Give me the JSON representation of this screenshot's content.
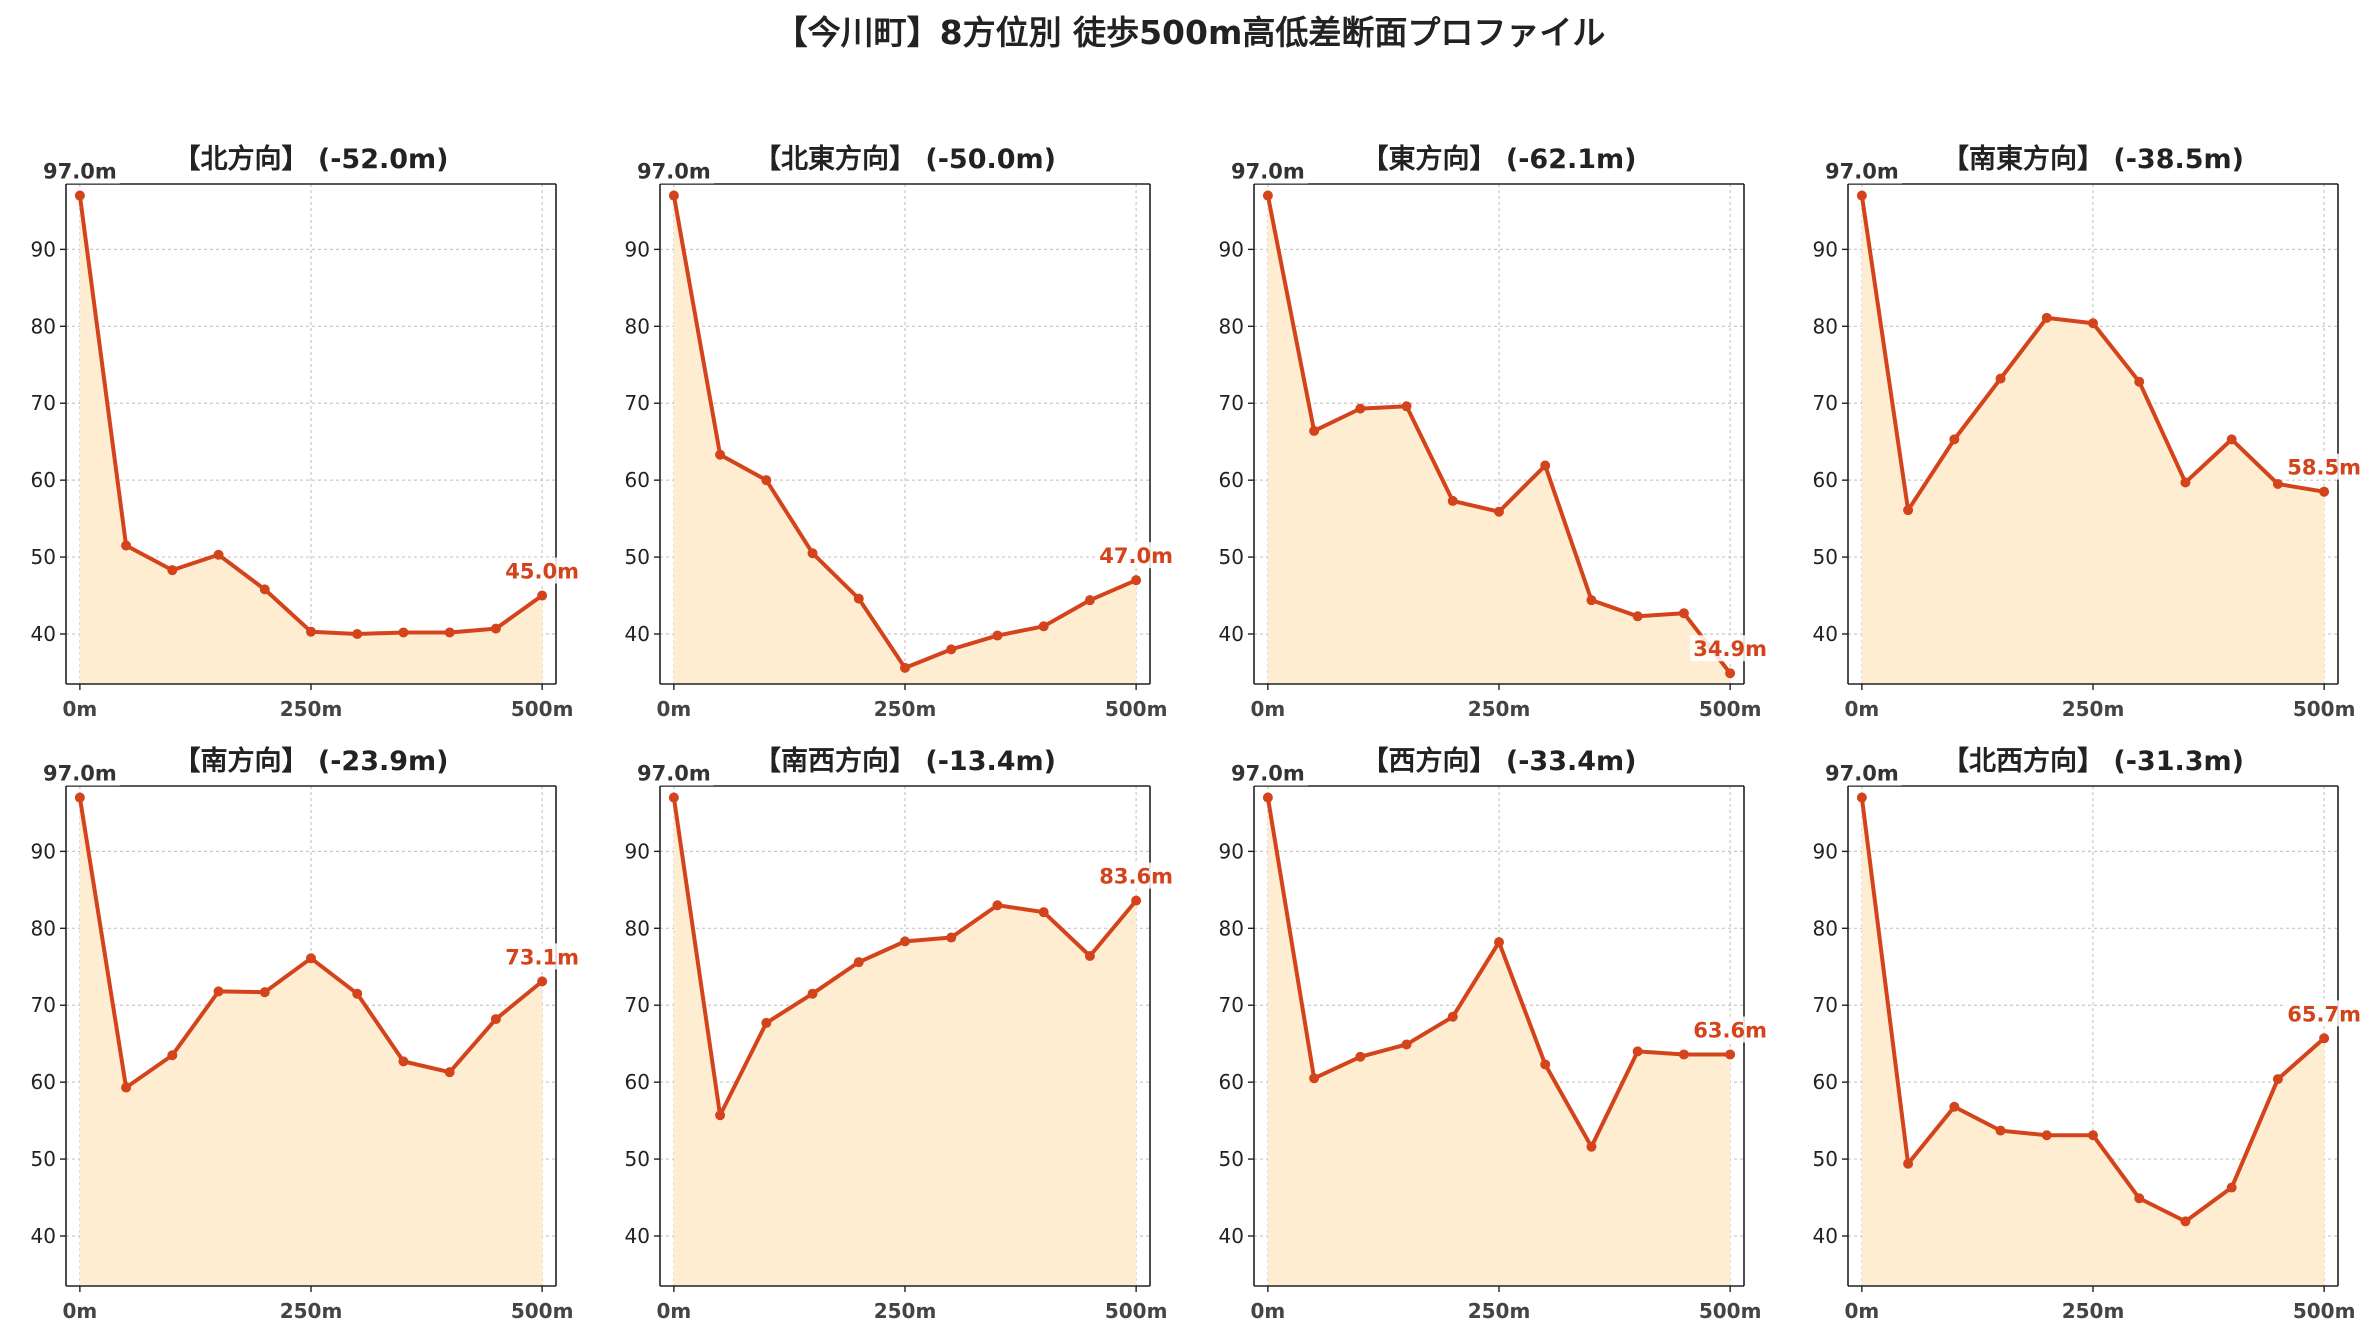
{
  "title": "【今川町】8方位別 徒歩500m高低差断面プロファイル",
  "colors": {
    "line": "#d4441c",
    "fill": "#ffedd1",
    "grid": "#c8c8c8",
    "axis": "#222222"
  },
  "chart_data": [
    {
      "type": "area",
      "title": "【北方向】 (-52.0m)",
      "x": [
        0,
        50,
        100,
        150,
        200,
        250,
        300,
        350,
        400,
        450,
        500
      ],
      "y": [
        97.0,
        51.5,
        48.3,
        50.3,
        45.8,
        40.3,
        40.0,
        40.2,
        40.2,
        40.7,
        45.0
      ],
      "start_label": "97.0m",
      "end_label": "45.0m"
    },
    {
      "type": "area",
      "title": "【北東方向】 (-50.0m)",
      "x": [
        0,
        50,
        100,
        150,
        200,
        250,
        300,
        350,
        400,
        450,
        500
      ],
      "y": [
        97.0,
        63.3,
        60.0,
        50.5,
        44.6,
        35.6,
        38.0,
        39.8,
        41.0,
        44.4,
        47.0
      ],
      "start_label": "97.0m",
      "end_label": "47.0m"
    },
    {
      "type": "area",
      "title": "【東方向】 (-62.1m)",
      "x": [
        0,
        50,
        100,
        150,
        200,
        250,
        300,
        350,
        400,
        450,
        500
      ],
      "y": [
        97.0,
        66.4,
        69.3,
        69.6,
        57.3,
        55.9,
        61.9,
        44.4,
        42.3,
        42.7,
        34.9
      ],
      "start_label": "97.0m",
      "end_label": "34.9m"
    },
    {
      "type": "area",
      "title": "【南東方向】 (-38.5m)",
      "x": [
        0,
        50,
        100,
        150,
        200,
        250,
        300,
        350,
        400,
        450,
        500
      ],
      "y": [
        97.0,
        56.1,
        65.3,
        73.2,
        81.1,
        80.4,
        72.8,
        59.7,
        65.3,
        59.5,
        58.5
      ],
      "start_label": "97.0m",
      "end_label": "58.5m"
    },
    {
      "type": "area",
      "title": "【南方向】 (-23.9m)",
      "x": [
        0,
        50,
        100,
        150,
        200,
        250,
        300,
        350,
        400,
        450,
        500
      ],
      "y": [
        97.0,
        59.3,
        63.5,
        71.8,
        71.7,
        76.1,
        71.5,
        62.7,
        61.3,
        68.2,
        73.1
      ],
      "start_label": "97.0m",
      "end_label": "73.1m"
    },
    {
      "type": "area",
      "title": "【南西方向】 (-13.4m)",
      "x": [
        0,
        50,
        100,
        150,
        200,
        250,
        300,
        350,
        400,
        450,
        500
      ],
      "y": [
        97.0,
        55.7,
        67.7,
        71.5,
        75.6,
        78.3,
        78.8,
        83.0,
        82.1,
        76.4,
        83.6
      ],
      "start_label": "97.0m",
      "end_label": "83.6m"
    },
    {
      "type": "area",
      "title": "【西方向】 (-33.4m)",
      "x": [
        0,
        50,
        100,
        150,
        200,
        250,
        300,
        350,
        400,
        450,
        500
      ],
      "y": [
        97.0,
        60.5,
        63.3,
        64.9,
        68.5,
        78.2,
        62.3,
        51.6,
        64.0,
        63.6,
        63.6
      ],
      "start_label": "97.0m",
      "end_label": "63.6m"
    },
    {
      "type": "area",
      "title": "【北西方向】 (-31.3m)",
      "x": [
        0,
        50,
        100,
        150,
        200,
        250,
        300,
        350,
        400,
        450,
        500
      ],
      "y": [
        97.0,
        49.4,
        56.8,
        53.7,
        53.1,
        53.1,
        44.9,
        41.9,
        46.3,
        60.4,
        65.7
      ],
      "start_label": "97.0m",
      "end_label": "65.7m"
    }
  ],
  "y_ticks": [
    40,
    50,
    60,
    70,
    80,
    90
  ],
  "x_ticks": [
    {
      "value": 0,
      "label": "0m"
    },
    {
      "value": 250,
      "label": "250m"
    },
    {
      "value": 500,
      "label": "500m"
    }
  ],
  "xlim": [
    -15,
    515
  ],
  "ylim_top": [
    33.5,
    98.5
  ],
  "ylim_bottom": [
    33.5,
    98.5
  ]
}
